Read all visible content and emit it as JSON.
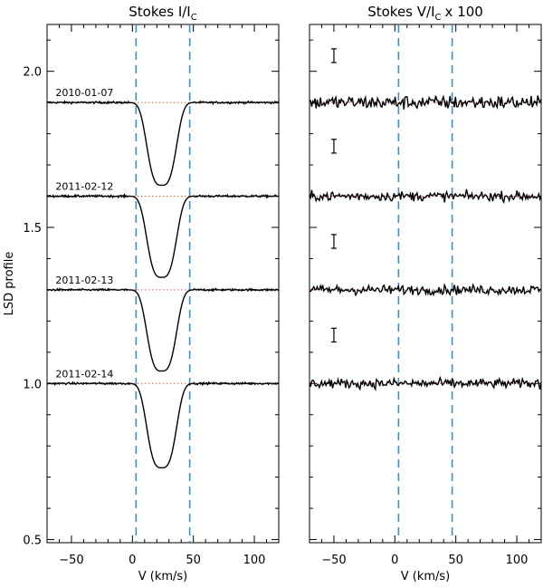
{
  "chart_data": [
    {
      "type": "line",
      "title": "Stokes I/I",
      "title_sub": "C",
      "xlabel": "V (km/s)",
      "ylabel": "LSD profile",
      "xlim": [
        -70,
        120
      ],
      "ylim": [
        0.49,
        2.15
      ],
      "xticks": [
        -50,
        0,
        50,
        100
      ],
      "yticks": [
        0.5,
        1.0,
        1.5,
        2.0
      ],
      "ytick_labels": [
        "0.5",
        "1.0",
        "1.5",
        "2.0"
      ],
      "vertical_lines_x": [
        3,
        47
      ],
      "series": [
        {
          "name": "2010-01-07",
          "continuum": 1.9,
          "min_x": 24,
          "min_y": 1.635
        },
        {
          "name": "2011-02-12",
          "continuum": 1.6,
          "min_x": 24,
          "min_y": 1.34
        },
        {
          "name": "2011-02-13",
          "continuum": 1.3,
          "min_x": 24,
          "min_y": 1.04
        },
        {
          "name": "2011-02-14",
          "continuum": 1.0,
          "min_x": 24,
          "min_y": 0.73
        }
      ]
    },
    {
      "type": "line",
      "title": "Stokes V/I",
      "title_sub": "C",
      "title_suffix": "x 100",
      "xlabel": "V (km/s)",
      "xlim": [
        -70,
        120
      ],
      "ylim": [
        0.49,
        2.15
      ],
      "xticks": [
        -50,
        0,
        50,
        100
      ],
      "vertical_lines_x": [
        3,
        47
      ],
      "error_bar_x": -50,
      "series": [
        {
          "offset": 1.9,
          "error_center": 2.05
        },
        {
          "offset": 1.6,
          "error_center": 1.76
        },
        {
          "offset": 1.3,
          "error_center": 1.455
        },
        {
          "offset": 1.0,
          "error_center": 1.155
        }
      ]
    }
  ]
}
